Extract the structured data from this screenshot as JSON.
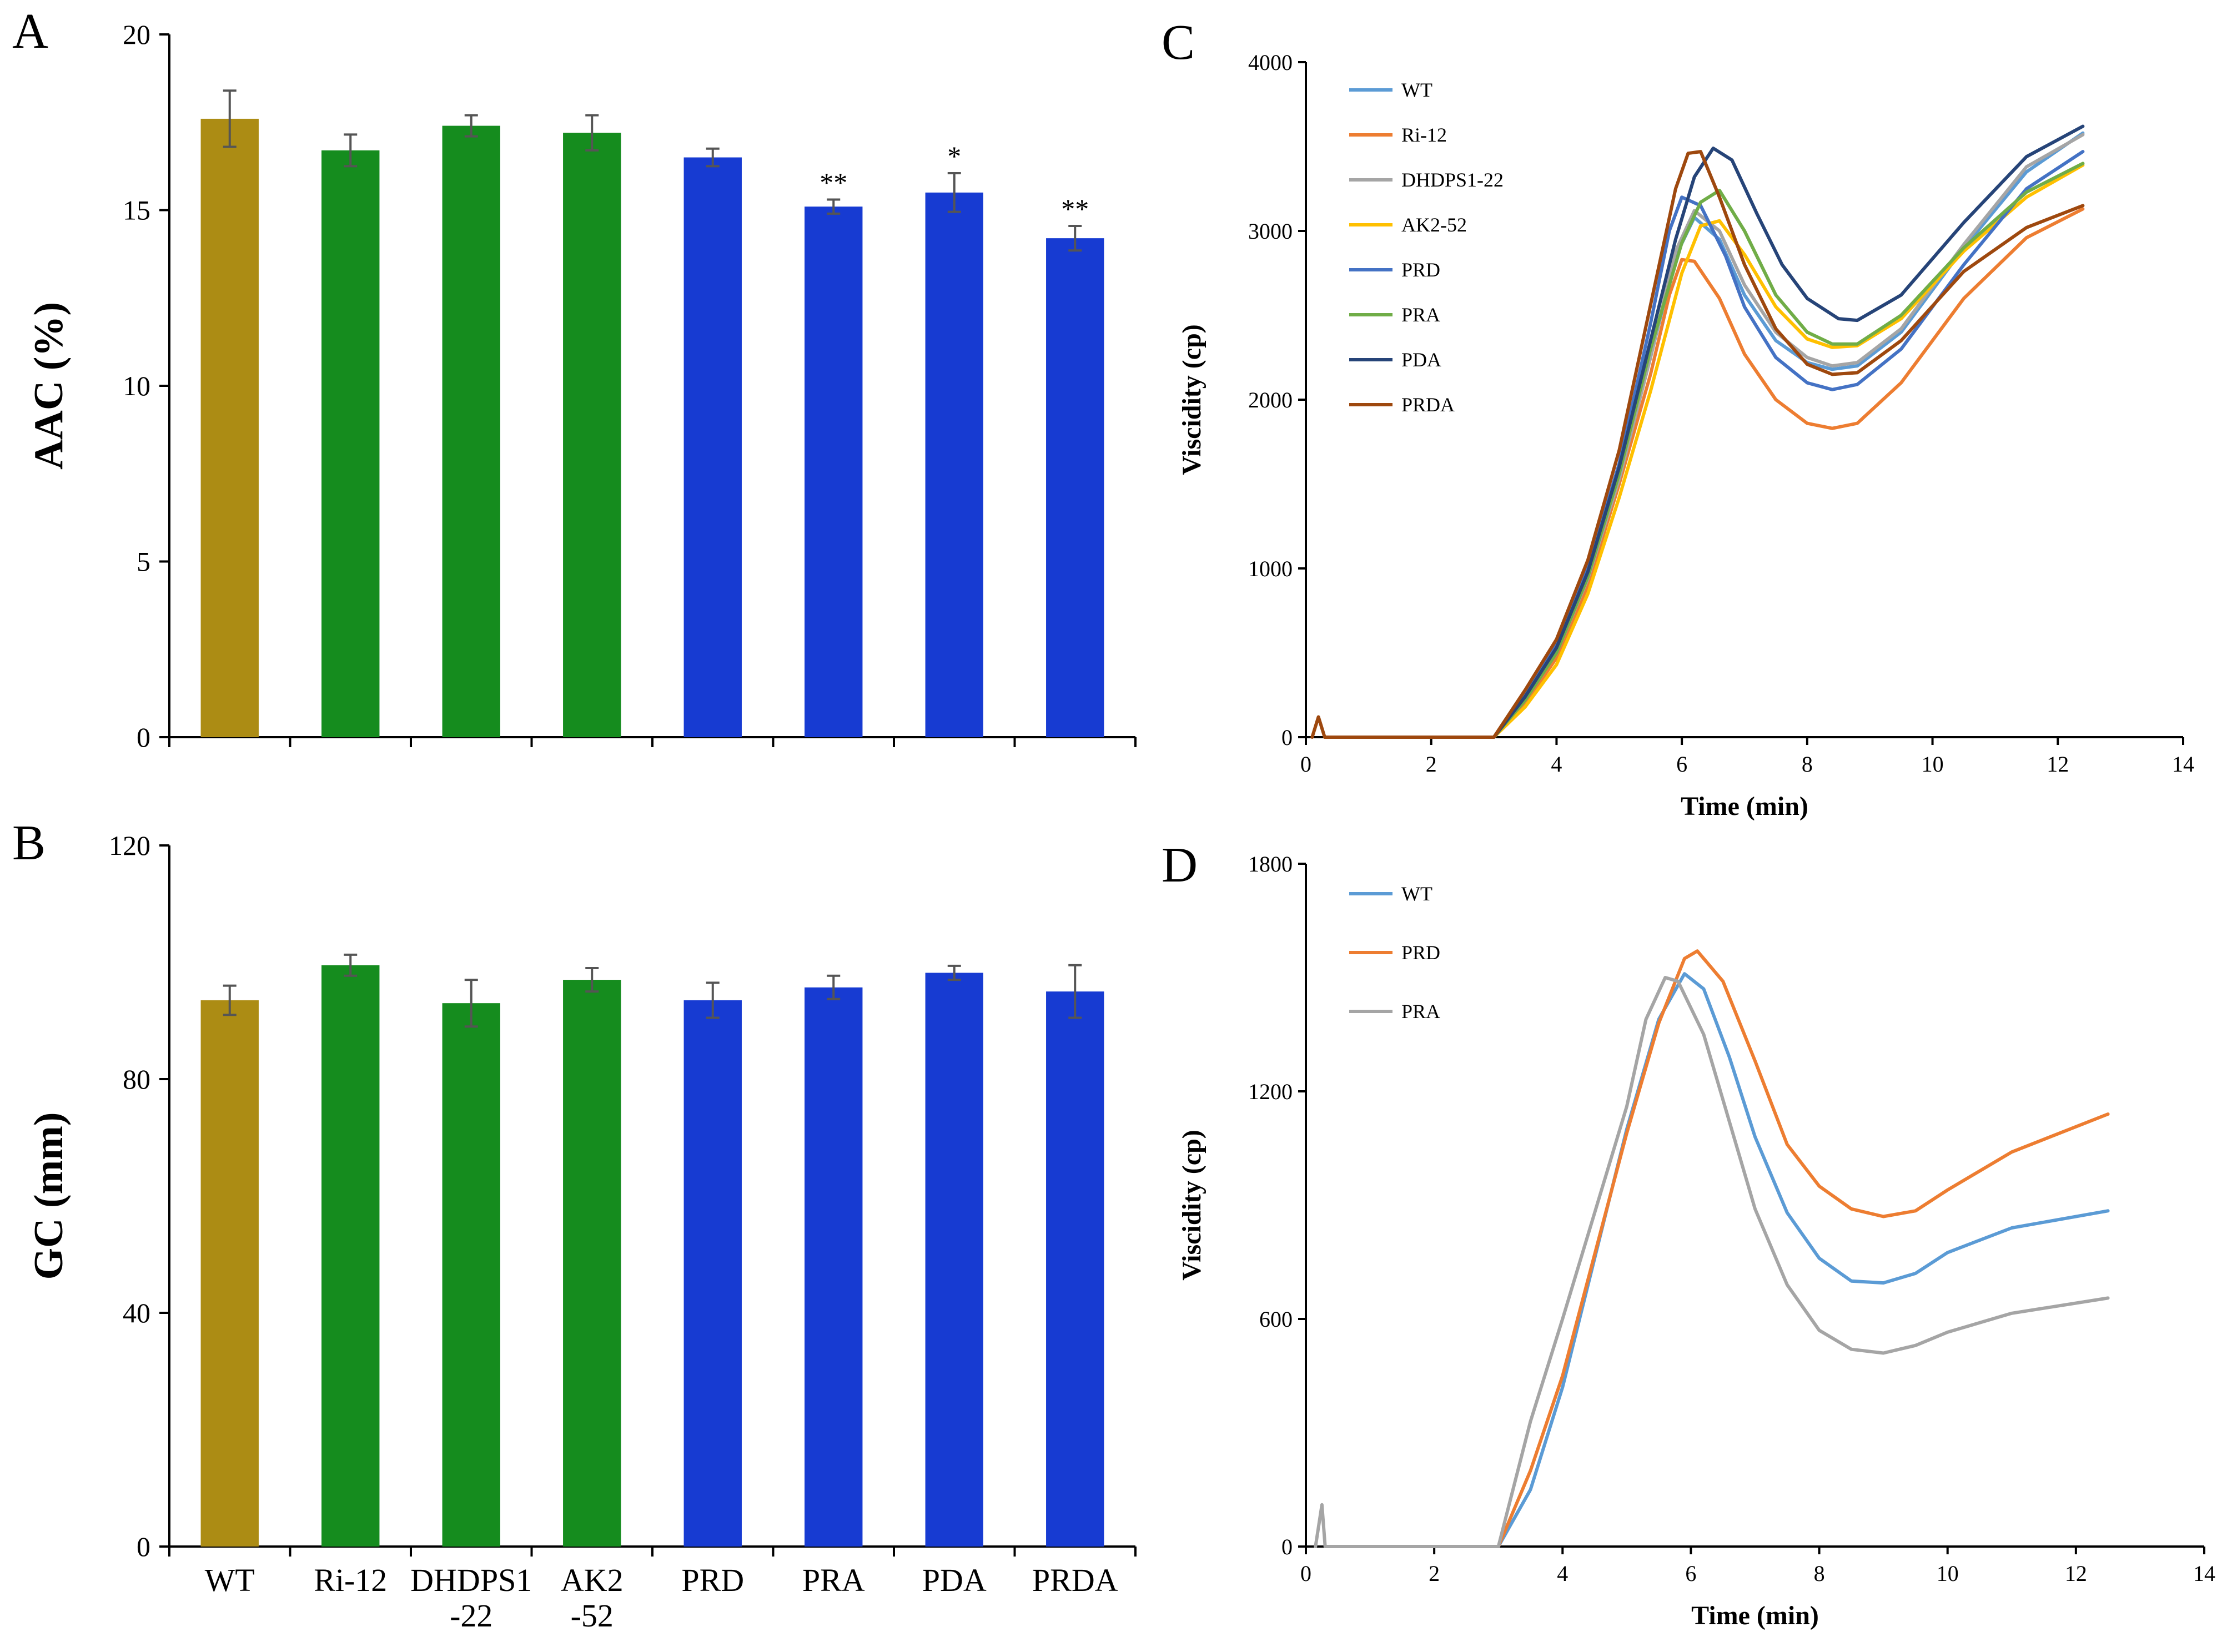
{
  "panels": {
    "a": "A",
    "b": "B",
    "c": "C",
    "d": "D"
  },
  "chart_data": [
    {
      "id": "A",
      "type": "bar",
      "title": "",
      "xlabel": "",
      "ylabel": "AAC (%)",
      "ylim": [
        0,
        20
      ],
      "yticks": [
        0,
        5,
        10,
        15,
        20
      ],
      "categories": [
        "WT",
        "Ri-12",
        "DHDPS1\n-22",
        "AK2\n-52",
        "PRD",
        "PRA",
        "PDA",
        "PRDA"
      ],
      "values": [
        17.6,
        16.7,
        17.4,
        17.2,
        16.5,
        15.1,
        15.5,
        14.2
      ],
      "errors": [
        0.8,
        0.45,
        0.3,
        0.5,
        0.25,
        0.2,
        0.55,
        0.35
      ],
      "significance": [
        "",
        "",
        "",
        "",
        "",
        "**",
        "*",
        "**"
      ],
      "colors": [
        "#AC8C14",
        "#158C1E",
        "#158C1E",
        "#158C1E",
        "#173BD2",
        "#173BD2",
        "#173BD2",
        "#173BD2"
      ]
    },
    {
      "id": "B",
      "type": "bar",
      "title": "",
      "xlabel": "",
      "ylabel": "GC (mm)",
      "ylim": [
        0,
        120
      ],
      "yticks": [
        0,
        40,
        80,
        120
      ],
      "categories": [
        "WT",
        "Ri-12",
        "DHDPS1\n-22",
        "AK2\n-52",
        "PRD",
        "PRA",
        "PDA",
        "PRDA"
      ],
      "values": [
        93.5,
        99.5,
        93,
        97,
        93.5,
        95.7,
        98.2,
        95
      ],
      "errors": [
        2.5,
        1.8,
        4,
        2,
        3,
        2,
        1.2,
        4.5
      ],
      "significance": [
        "",
        "",
        "",
        "",
        "",
        "",
        "",
        ""
      ],
      "colors": [
        "#AC8C14",
        "#158C1E",
        "#158C1E",
        "#158C1E",
        "#173BD2",
        "#173BD2",
        "#173BD2",
        "#173BD2"
      ]
    },
    {
      "id": "C",
      "type": "line",
      "title": "",
      "xlabel": "Time (min)",
      "ylabel": "Viscidity (cp)",
      "xlim": [
        0,
        14
      ],
      "ylim": [
        0,
        4000
      ],
      "xticks": [
        0,
        2,
        4,
        6,
        8,
        10,
        12,
        14
      ],
      "yticks": [
        0,
        1000,
        2000,
        3000,
        4000
      ],
      "legend": "top-left",
      "series": [
        {
          "name": "WT",
          "color": "#5B9BD5",
          "points": [
            [
              3.0,
              0
            ],
            [
              3.5,
              230
            ],
            [
              4.0,
              520
            ],
            [
              4.5,
              960
            ],
            [
              5.0,
              1550
            ],
            [
              5.5,
              2250
            ],
            [
              5.9,
              2850
            ],
            [
              6.2,
              3080
            ],
            [
              6.6,
              2950
            ],
            [
              7.0,
              2620
            ],
            [
              7.5,
              2350
            ],
            [
              8.0,
              2220
            ],
            [
              8.4,
              2180
            ],
            [
              8.8,
              2200
            ],
            [
              9.5,
              2400
            ],
            [
              10.5,
              2900
            ],
            [
              11.5,
              3350
            ],
            [
              12.4,
              3580
            ]
          ]
        },
        {
          "name": "Ri-12",
          "color": "#ED7D31",
          "points": [
            [
              3.0,
              0
            ],
            [
              3.5,
              200
            ],
            [
              4.0,
              470
            ],
            [
              4.5,
              900
            ],
            [
              5.0,
              1500
            ],
            [
              5.5,
              2150
            ],
            [
              5.8,
              2620
            ],
            [
              6.0,
              2830
            ],
            [
              6.2,
              2820
            ],
            [
              6.6,
              2600
            ],
            [
              7.0,
              2270
            ],
            [
              7.5,
              2000
            ],
            [
              8.0,
              1860
            ],
            [
              8.4,
              1830
            ],
            [
              8.8,
              1860
            ],
            [
              9.5,
              2100
            ],
            [
              10.5,
              2600
            ],
            [
              11.5,
              2960
            ],
            [
              12.4,
              3130
            ]
          ]
        },
        {
          "name": "DHDPS1-22",
          "color": "#A5A5A5",
          "points": [
            [
              3.0,
              0
            ],
            [
              3.5,
              220
            ],
            [
              4.0,
              500
            ],
            [
              4.5,
              940
            ],
            [
              5.0,
              1530
            ],
            [
              5.5,
              2250
            ],
            [
              5.9,
              2880
            ],
            [
              6.2,
              3120
            ],
            [
              6.6,
              3000
            ],
            [
              7.0,
              2680
            ],
            [
              7.5,
              2400
            ],
            [
              8.0,
              2250
            ],
            [
              8.4,
              2200
            ],
            [
              8.8,
              2220
            ],
            [
              9.5,
              2420
            ],
            [
              10.5,
              2920
            ],
            [
              11.5,
              3380
            ],
            [
              12.4,
              3570
            ]
          ]
        },
        {
          "name": "AK2-52",
          "color": "#FFC000",
          "points": [
            [
              3.0,
              0
            ],
            [
              3.5,
              180
            ],
            [
              4.0,
              430
            ],
            [
              4.5,
              850
            ],
            [
              5.0,
              1420
            ],
            [
              5.5,
              2050
            ],
            [
              6.0,
              2750
            ],
            [
              6.3,
              3030
            ],
            [
              6.6,
              3060
            ],
            [
              7.0,
              2860
            ],
            [
              7.5,
              2550
            ],
            [
              8.0,
              2360
            ],
            [
              8.4,
              2310
            ],
            [
              8.8,
              2320
            ],
            [
              9.5,
              2480
            ],
            [
              10.5,
              2880
            ],
            [
              11.5,
              3200
            ],
            [
              12.4,
              3390
            ]
          ]
        },
        {
          "name": "PRD",
          "color": "#4472C4",
          "points": [
            [
              3.0,
              0
            ],
            [
              3.5,
              260
            ],
            [
              4.0,
              560
            ],
            [
              4.5,
              1000
            ],
            [
              5.0,
              1620
            ],
            [
              5.5,
              2450
            ],
            [
              5.8,
              3000
            ],
            [
              6.0,
              3200
            ],
            [
              6.3,
              3150
            ],
            [
              6.7,
              2850
            ],
            [
              7.0,
              2550
            ],
            [
              7.5,
              2250
            ],
            [
              8.0,
              2100
            ],
            [
              8.4,
              2060
            ],
            [
              8.8,
              2090
            ],
            [
              9.5,
              2300
            ],
            [
              10.5,
              2800
            ],
            [
              11.5,
              3250
            ],
            [
              12.4,
              3470
            ]
          ]
        },
        {
          "name": "PRA",
          "color": "#70AD47",
          "points": [
            [
              3.0,
              0
            ],
            [
              3.5,
              220
            ],
            [
              4.0,
              500
            ],
            [
              4.5,
              950
            ],
            [
              5.0,
              1560
            ],
            [
              5.5,
              2300
            ],
            [
              6.0,
              2930
            ],
            [
              6.3,
              3170
            ],
            [
              6.6,
              3240
            ],
            [
              7.0,
              3000
            ],
            [
              7.5,
              2620
            ],
            [
              8.0,
              2400
            ],
            [
              8.4,
              2330
            ],
            [
              8.8,
              2330
            ],
            [
              9.5,
              2500
            ],
            [
              10.5,
              2900
            ],
            [
              11.5,
              3230
            ],
            [
              12.4,
              3400
            ]
          ]
        },
        {
          "name": "PDA",
          "color": "#264478",
          "points": [
            [
              3.0,
              0
            ],
            [
              3.5,
              240
            ],
            [
              4.0,
              530
            ],
            [
              4.5,
              980
            ],
            [
              5.0,
              1600
            ],
            [
              5.5,
              2350
            ],
            [
              5.9,
              2950
            ],
            [
              6.2,
              3320
            ],
            [
              6.5,
              3490
            ],
            [
              6.8,
              3420
            ],
            [
              7.2,
              3100
            ],
            [
              7.6,
              2800
            ],
            [
              8.0,
              2600
            ],
            [
              8.5,
              2480
            ],
            [
              8.8,
              2470
            ],
            [
              9.5,
              2620
            ],
            [
              10.5,
              3050
            ],
            [
              11.5,
              3440
            ],
            [
              12.4,
              3620
            ]
          ]
        },
        {
          "name": "PRDA",
          "color": "#9E480E",
          "points": [
            [
              0.1,
              0
            ],
            [
              0.2,
              120
            ],
            [
              0.3,
              0
            ],
            [
              3.0,
              0
            ],
            [
              3.5,
              280
            ],
            [
              4.0,
              580
            ],
            [
              4.5,
              1050
            ],
            [
              5.0,
              1700
            ],
            [
              5.5,
              2560
            ],
            [
              5.9,
              3250
            ],
            [
              6.1,
              3460
            ],
            [
              6.3,
              3470
            ],
            [
              6.6,
              3200
            ],
            [
              7.0,
              2800
            ],
            [
              7.5,
              2420
            ],
            [
              8.0,
              2210
            ],
            [
              8.4,
              2150
            ],
            [
              8.8,
              2160
            ],
            [
              9.5,
              2350
            ],
            [
              10.5,
              2760
            ],
            [
              11.5,
              3020
            ],
            [
              12.4,
              3150
            ]
          ]
        }
      ]
    },
    {
      "id": "D",
      "type": "line",
      "title": "",
      "xlabel": "Time (min)",
      "ylabel": "Viscidity (cp)",
      "xlim": [
        0,
        14
      ],
      "ylim": [
        0,
        1800
      ],
      "xticks": [
        0,
        2,
        4,
        6,
        8,
        10,
        12,
        14
      ],
      "yticks": [
        0,
        600,
        1200,
        1800
      ],
      "legend": "top-left",
      "series": [
        {
          "name": "WT",
          "color": "#5B9BD5",
          "points": [
            [
              3.0,
              0
            ],
            [
              3.5,
              150
            ],
            [
              4.0,
              420
            ],
            [
              4.5,
              760
            ],
            [
              5.0,
              1100
            ],
            [
              5.5,
              1390
            ],
            [
              5.9,
              1510
            ],
            [
              6.2,
              1470
            ],
            [
              6.6,
              1290
            ],
            [
              7.0,
              1080
            ],
            [
              7.5,
              880
            ],
            [
              8.0,
              760
            ],
            [
              8.5,
              700
            ],
            [
              9.0,
              695
            ],
            [
              9.5,
              720
            ],
            [
              10.0,
              775
            ],
            [
              11.0,
              840
            ],
            [
              12.5,
              885
            ]
          ]
        },
        {
          "name": "PRD",
          "color": "#ED7D31",
          "points": [
            [
              3.0,
              0
            ],
            [
              3.5,
              200
            ],
            [
              4.0,
              450
            ],
            [
              4.5,
              770
            ],
            [
              5.0,
              1090
            ],
            [
              5.5,
              1380
            ],
            [
              5.9,
              1550
            ],
            [
              6.1,
              1570
            ],
            [
              6.5,
              1490
            ],
            [
              7.0,
              1280
            ],
            [
              7.5,
              1060
            ],
            [
              8.0,
              950
            ],
            [
              8.5,
              890
            ],
            [
              9.0,
              870
            ],
            [
              9.5,
              885
            ],
            [
              10.0,
              940
            ],
            [
              11.0,
              1040
            ],
            [
              12.5,
              1140
            ]
          ]
        },
        {
          "name": "PRA",
          "color": "#A5A5A5",
          "points": [
            [
              0.15,
              0
            ],
            [
              0.25,
              110
            ],
            [
              0.3,
              0
            ],
            [
              3.0,
              0
            ],
            [
              3.5,
              330
            ],
            [
              4.0,
              600
            ],
            [
              4.5,
              880
            ],
            [
              5.0,
              1160
            ],
            [
              5.3,
              1390
            ],
            [
              5.6,
              1500
            ],
            [
              5.8,
              1490
            ],
            [
              6.2,
              1350
            ],
            [
              6.6,
              1120
            ],
            [
              7.0,
              890
            ],
            [
              7.5,
              690
            ],
            [
              8.0,
              570
            ],
            [
              8.5,
              520
            ],
            [
              9.0,
              510
            ],
            [
              9.5,
              530
            ],
            [
              10.0,
              565
            ],
            [
              11.0,
              615
            ],
            [
              12.5,
              655
            ]
          ]
        }
      ]
    }
  ]
}
